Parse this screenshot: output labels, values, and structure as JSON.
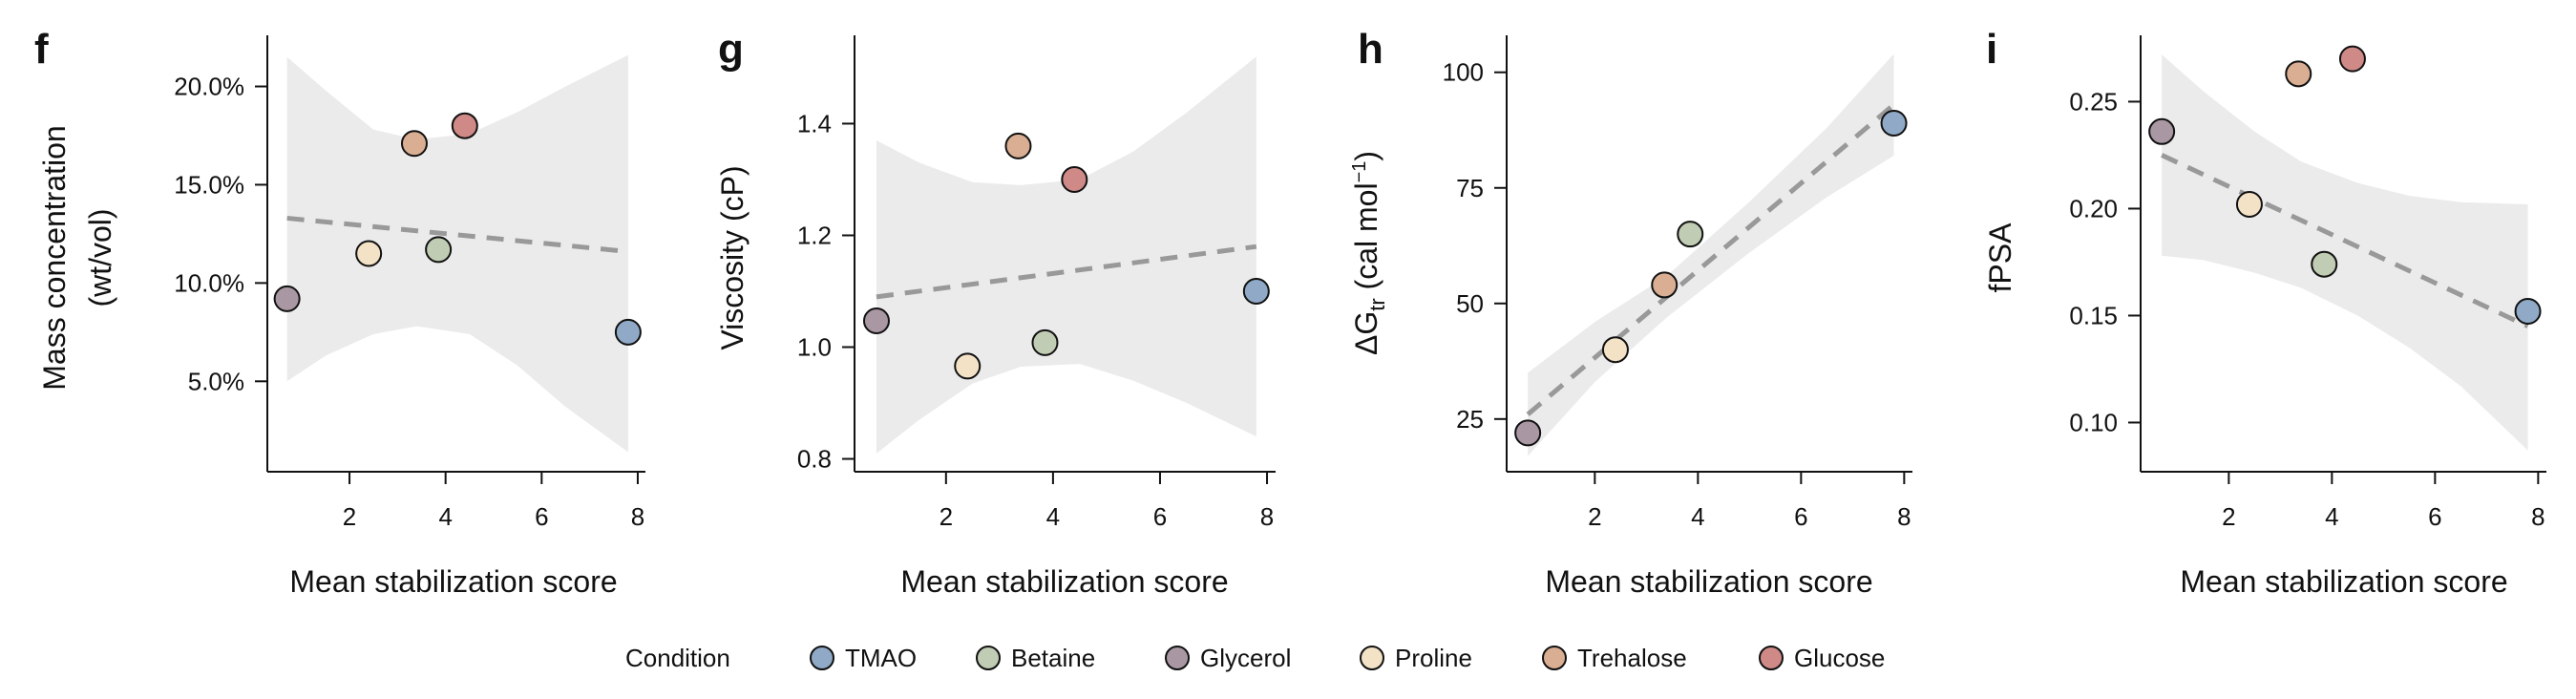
{
  "legend": {
    "title": "Condition",
    "items": [
      {
        "name": "TMAO",
        "color": "#8fa9c6"
      },
      {
        "name": "Betaine",
        "color": "#c0ccb4"
      },
      {
        "name": "Glycerol",
        "color": "#a998a3"
      },
      {
        "name": "Proline",
        "color": "#f3e2c6"
      },
      {
        "name": "Trehalose",
        "color": "#d9ae92"
      },
      {
        "name": "Glucose",
        "color": "#cf8a88"
      }
    ]
  },
  "style": {
    "ci_fill": "#ebebeb",
    "fit_line": "#999999",
    "marker_edge": "#111111"
  },
  "chart_data": [
    {
      "type": "scatter",
      "panel": "f",
      "xlabel": "Mean stabilization score",
      "ylabel": [
        "Mass concentration",
        "(wt/vol)"
      ],
      "xlim": [
        0.29,
        8.16
      ],
      "ylim": [
        0.4,
        22.6
      ],
      "xticks": [
        2,
        4,
        6,
        8
      ],
      "xtick_labels": [
        "2",
        "4",
        "6",
        "8"
      ],
      "yticks": [
        5,
        10,
        15,
        20
      ],
      "ytick_labels": [
        "5.0%",
        "10.0%",
        "15.0%",
        "20.0%"
      ],
      "points": [
        {
          "condition": "Glycerol",
          "x": 0.7,
          "y": 9.2
        },
        {
          "condition": "Proline",
          "x": 2.4,
          "y": 11.5
        },
        {
          "condition": "Trehalose",
          "x": 3.35,
          "y": 17.1
        },
        {
          "condition": "Betaine",
          "x": 3.85,
          "y": 11.7
        },
        {
          "condition": "Glucose",
          "x": 4.4,
          "y": 18.0
        },
        {
          "condition": "TMAO",
          "x": 7.8,
          "y": 7.5
        }
      ],
      "fit": {
        "x": [
          0.7,
          7.8
        ],
        "y": [
          13.3,
          11.6
        ]
      },
      "ci": {
        "x": [
          0.7,
          1.5,
          2.5,
          3.4,
          4.5,
          5.5,
          6.5,
          7.8
        ],
        "lower": [
          5.0,
          6.3,
          7.4,
          7.8,
          7.4,
          5.8,
          3.7,
          1.4
        ],
        "upper": [
          21.5,
          19.8,
          17.8,
          17.3,
          17.6,
          18.7,
          20.0,
          21.6
        ]
      }
    },
    {
      "type": "scatter",
      "panel": "g",
      "xlabel": "Mean stabilization score",
      "ylabel": [
        "Viscosity (cP)"
      ],
      "xlim": [
        0.29,
        8.16
      ],
      "ylim": [
        0.777,
        1.558
      ],
      "xticks": [
        2,
        4,
        6,
        8
      ],
      "xtick_labels": [
        "2",
        "4",
        "6",
        "8"
      ],
      "yticks": [
        0.8,
        1.0,
        1.2,
        1.4
      ],
      "ytick_labels": [
        "0.8",
        "1.0",
        "1.2",
        "1.4"
      ],
      "points": [
        {
          "condition": "Glycerol",
          "x": 0.7,
          "y": 1.047
        },
        {
          "condition": "Proline",
          "x": 2.4,
          "y": 0.966
        },
        {
          "condition": "Trehalose",
          "x": 3.35,
          "y": 1.36
        },
        {
          "condition": "Betaine",
          "x": 3.85,
          "y": 1.008
        },
        {
          "condition": "Glucose",
          "x": 4.4,
          "y": 1.3
        },
        {
          "condition": "TMAO",
          "x": 7.8,
          "y": 1.1
        }
      ],
      "fit": {
        "x": [
          0.7,
          7.8
        ],
        "y": [
          1.09,
          1.18
        ]
      },
      "ci": {
        "x": [
          0.7,
          1.5,
          2.5,
          3.4,
          4.5,
          5.5,
          6.5,
          7.8
        ],
        "lower": [
          0.81,
          0.87,
          0.935,
          0.965,
          0.97,
          0.94,
          0.9,
          0.84
        ],
        "upper": [
          1.37,
          1.33,
          1.295,
          1.29,
          1.3,
          1.35,
          1.42,
          1.52
        ]
      }
    },
    {
      "type": "scatter",
      "panel": "h",
      "xlabel": "Mean stabilization score",
      "ylabel_parts": {
        "main": "ΔG",
        "sub": "tr",
        "unit": " (cal mol",
        "sup": "−1",
        "close": ")"
      },
      "xlim": [
        0.29,
        8.16
      ],
      "ylim": [
        13.6,
        108
      ],
      "xticks": [
        2,
        4,
        6,
        8
      ],
      "xtick_labels": [
        "2",
        "4",
        "6",
        "8"
      ],
      "yticks": [
        25,
        50,
        75,
        100
      ],
      "ytick_labels": [
        "25",
        "50",
        "75",
        "100"
      ],
      "points": [
        {
          "condition": "Glycerol",
          "x": 0.7,
          "y": 22
        },
        {
          "condition": "Proline",
          "x": 2.4,
          "y": 40
        },
        {
          "condition": "Trehalose",
          "x": 3.35,
          "y": 54
        },
        {
          "condition": "Betaine",
          "x": 3.85,
          "y": 65
        },
        {
          "condition": "TMAO",
          "x": 7.8,
          "y": 89
        }
      ],
      "fit": {
        "x": [
          0.7,
          7.8
        ],
        "y": [
          26,
          93
        ]
      },
      "ci": {
        "x": [
          0.7,
          2,
          3.4,
          5,
          6.5,
          7.8
        ],
        "lower": [
          17,
          33,
          47,
          61,
          73,
          82
        ],
        "upper": [
          35,
          46,
          56,
          72,
          88,
          104
        ]
      }
    },
    {
      "type": "scatter",
      "panel": "i",
      "xlabel": "Mean stabilization score",
      "ylabel": [
        "fPSA"
      ],
      "xlim": [
        0.29,
        8.16
      ],
      "ylim": [
        0.077,
        0.281
      ],
      "xticks": [
        2,
        4,
        6,
        8
      ],
      "xtick_labels": [
        "2",
        "4",
        "6",
        "8"
      ],
      "yticks": [
        0.1,
        0.15,
        0.2,
        0.25
      ],
      "ytick_labels": [
        "0.10",
        "0.15",
        "0.20",
        "0.25"
      ],
      "points": [
        {
          "condition": "Glycerol",
          "x": 0.7,
          "y": 0.236
        },
        {
          "condition": "Proline",
          "x": 2.4,
          "y": 0.202
        },
        {
          "condition": "Trehalose",
          "x": 3.35,
          "y": 0.263
        },
        {
          "condition": "Betaine",
          "x": 3.85,
          "y": 0.174
        },
        {
          "condition": "Glucose",
          "x": 4.4,
          "y": 0.27
        },
        {
          "condition": "TMAO",
          "x": 7.8,
          "y": 0.152
        }
      ],
      "fit": {
        "x": [
          0.7,
          7.8
        ],
        "y": [
          0.225,
          0.145
        ]
      },
      "ci": {
        "x": [
          0.7,
          1.5,
          2.5,
          3.4,
          4.5,
          5.5,
          6.5,
          7.8
        ],
        "lower": [
          0.178,
          0.176,
          0.17,
          0.163,
          0.15,
          0.135,
          0.117,
          0.087
        ],
        "upper": [
          0.272,
          0.255,
          0.236,
          0.222,
          0.212,
          0.206,
          0.203,
          0.202
        ]
      }
    }
  ]
}
